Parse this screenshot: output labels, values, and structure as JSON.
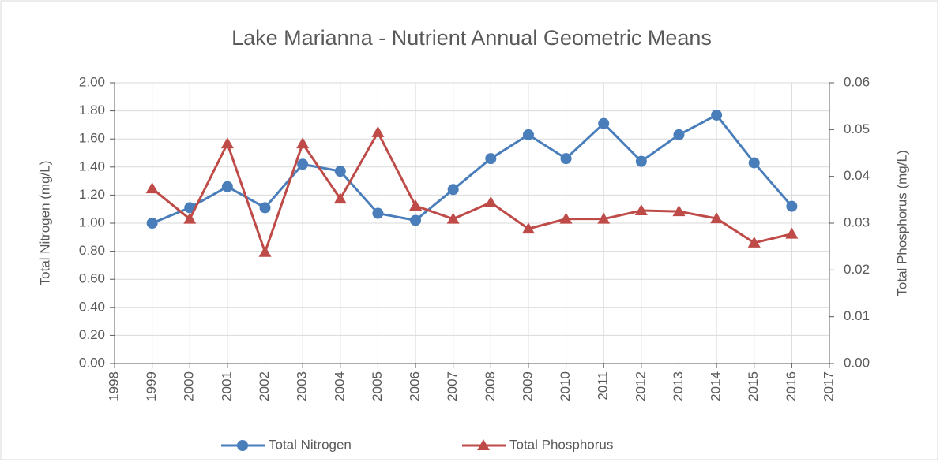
{
  "chart_data": {
    "type": "line",
    "title": "Lake Marianna - Nutrient Annual Geometric Means",
    "y_label": "Total Nitrogen (mg/L)",
    "y2_label": "Total Phosphorus (mg/L)",
    "x": [
      1999,
      2000,
      2001,
      2002,
      2003,
      2004,
      2005,
      2006,
      2007,
      2008,
      2009,
      2010,
      2011,
      2012,
      2013,
      2014,
      2015,
      2016
    ],
    "series": [
      {
        "name": "Total Nitrogen",
        "color": "#4a7ebb",
        "marker": "circle",
        "values": [
          1.0,
          1.11,
          1.26,
          1.11,
          1.42,
          1.37,
          1.07,
          1.02,
          1.24,
          1.46,
          1.63,
          1.46,
          1.71,
          1.44,
          1.63,
          1.77,
          1.43,
          1.12
        ]
      },
      {
        "name": "Total Phosphorus",
        "color": "#be4b48",
        "marker": "triangle",
        "axis": "y2",
        "values": [
          0.0374,
          0.0309,
          0.047,
          0.0238,
          0.047,
          0.0352,
          0.0494,
          0.0337,
          0.0309,
          0.0344,
          0.0288,
          0.0309,
          0.0309,
          0.0327,
          0.0325,
          0.031,
          0.0258,
          0.0277
        ]
      }
    ],
    "xlim": [
      1998,
      2017
    ],
    "xticks": [
      1998,
      1999,
      2000,
      2001,
      2002,
      2003,
      2004,
      2005,
      2006,
      2007,
      2008,
      2009,
      2010,
      2011,
      2012,
      2013,
      2014,
      2015,
      2016,
      2017
    ],
    "ylim": [
      0,
      2
    ],
    "yticks": [
      {
        "value": 0,
        "label": "0.00"
      },
      {
        "value": 0.2,
        "label": "0.20"
      },
      {
        "value": 0.4,
        "label": "0.40"
      },
      {
        "value": 0.6,
        "label": "0.60"
      },
      {
        "value": 0.8,
        "label": "0.80"
      },
      {
        "value": 1,
        "label": "1.00"
      },
      {
        "value": 1.2,
        "label": "1.20"
      },
      {
        "value": 1.4,
        "label": "1.40"
      },
      {
        "value": 1.6,
        "label": "1.60"
      },
      {
        "value": 1.8,
        "label": "1.80"
      },
      {
        "value": 2,
        "label": "2.00"
      }
    ],
    "y2lim": [
      0,
      0.06
    ],
    "y2ticks": [
      {
        "value": 0,
        "label": "0.00"
      },
      0.01,
      0.02,
      0.03,
      0.04,
      0.05,
      0.06
    ],
    "grid": true,
    "legend": "bottom"
  }
}
